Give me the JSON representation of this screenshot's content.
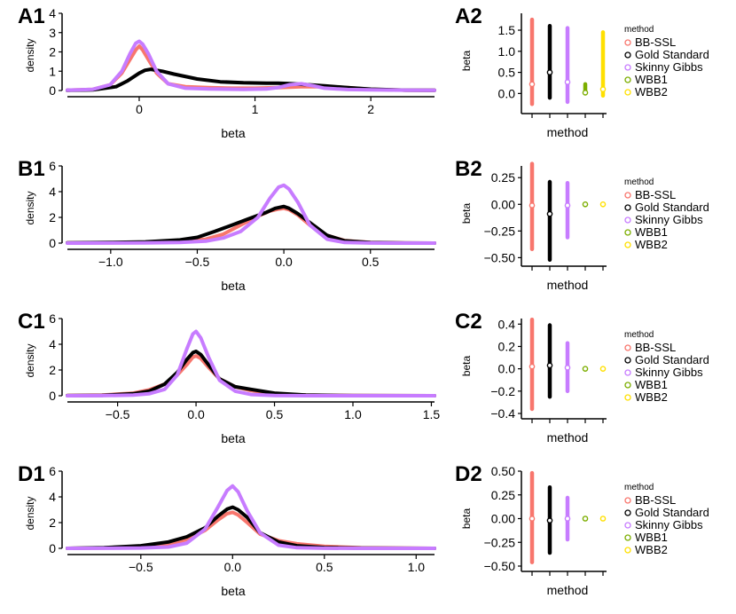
{
  "colors": {
    "BB-SSL": "#F8766D",
    "Gold Standard": "#000000",
    "Skinny Gibbs": "#C77CFF",
    "WBB1": "#7CAE00",
    "WBB2": "#FFE000"
  },
  "chart_data": [
    {
      "id": "A1",
      "panel_label": "A1",
      "type": "line",
      "xlabel": "beta",
      "ylabel": "density",
      "xlim": [
        -0.62,
        2.55
      ],
      "ylim": [
        0,
        4
      ],
      "xticks": [
        0,
        1,
        2
      ],
      "yticks": [
        0,
        1,
        2,
        3,
        4
      ],
      "series": [
        {
          "name": "BB-SSL",
          "x": [
            -0.62,
            -0.4,
            -0.25,
            -0.15,
            -0.08,
            -0.03,
            0,
            0.03,
            0.08,
            0.15,
            0.25,
            0.4,
            0.6,
            0.8,
            1.0,
            1.2,
            1.4,
            1.6,
            1.8,
            2.0,
            2.3,
            2.55
          ],
          "y": [
            0.02,
            0.06,
            0.3,
            0.9,
            1.6,
            2.1,
            2.3,
            2.1,
            1.6,
            0.9,
            0.35,
            0.2,
            0.15,
            0.12,
            0.12,
            0.15,
            0.2,
            0.2,
            0.15,
            0.06,
            0.02,
            0.01
          ]
        },
        {
          "name": "Gold Standard",
          "x": [
            -0.62,
            -0.4,
            -0.2,
            -0.1,
            0,
            0.05,
            0.1,
            0.2,
            0.3,
            0.5,
            0.7,
            0.9,
            1.1,
            1.2,
            1.3,
            1.4,
            1.5,
            1.6,
            1.8,
            2.0,
            2.3,
            2.55
          ],
          "y": [
            0.01,
            0.03,
            0.2,
            0.5,
            0.9,
            1.05,
            1.1,
            1.0,
            0.85,
            0.6,
            0.45,
            0.4,
            0.38,
            0.38,
            0.36,
            0.32,
            0.28,
            0.24,
            0.15,
            0.07,
            0.02,
            0.01
          ]
        },
        {
          "name": "Skinny Gibbs",
          "x": [
            -0.62,
            -0.4,
            -0.25,
            -0.15,
            -0.08,
            -0.03,
            0,
            0.03,
            0.08,
            0.15,
            0.25,
            0.4,
            0.6,
            0.9,
            1.1,
            1.2,
            1.3,
            1.4,
            1.5,
            1.6,
            1.8,
            2.0,
            2.3,
            2.55
          ],
          "y": [
            0.02,
            0.06,
            0.3,
            1.0,
            1.9,
            2.45,
            2.55,
            2.4,
            1.9,
            1.0,
            0.35,
            0.12,
            0.08,
            0.06,
            0.08,
            0.15,
            0.3,
            0.35,
            0.25,
            0.12,
            0.05,
            0.03,
            0.02,
            0.01
          ]
        }
      ]
    },
    {
      "id": "A2",
      "panel_label": "A2",
      "type": "interval",
      "xlabel": "method",
      "ylabel": "beta",
      "ylim": [
        -0.35,
        1.9
      ],
      "yticks": [
        0.0,
        0.5,
        1.0,
        1.5
      ],
      "ytick_labels": [
        "0.0",
        "0.5",
        "1.0",
        "1.5"
      ],
      "methods": [
        "BB-SSL",
        "Gold Standard",
        "Skinny Gibbs",
        "WBB1",
        "WBB2"
      ],
      "intervals": [
        {
          "name": "BB-SSL",
          "low": -0.25,
          "high": 1.75,
          "point": 0.22
        },
        {
          "name": "Gold Standard",
          "low": -0.1,
          "high": 1.6,
          "point": 0.5
        },
        {
          "name": "Skinny Gibbs",
          "low": -0.2,
          "high": 1.55,
          "point": 0.27
        },
        {
          "name": "WBB1",
          "low": 0.0,
          "high": 0.22,
          "point": 0.02
        },
        {
          "name": "WBB2",
          "low": -0.05,
          "high": 1.45,
          "point": 0.1
        }
      ]
    },
    {
      "id": "B1",
      "panel_label": "B1",
      "type": "line",
      "xlabel": "beta",
      "ylabel": "density",
      "xlim": [
        -1.25,
        0.87
      ],
      "ylim": [
        0,
        6
      ],
      "xticks": [
        -1.0,
        -0.5,
        0.0,
        0.5
      ],
      "xtick_labels": [
        "−1.0",
        "−0.5",
        "0.0",
        "0.5"
      ],
      "yticks": [
        0,
        2,
        4,
        6
      ],
      "series": [
        {
          "name": "BB-SSL",
          "x": [
            -1.25,
            -1.0,
            -0.8,
            -0.6,
            -0.45,
            -0.35,
            -0.25,
            -0.15,
            -0.08,
            -0.03,
            0,
            0.03,
            0.08,
            0.15,
            0.25,
            0.35,
            0.5,
            0.7,
            0.87
          ],
          "y": [
            0.02,
            0.03,
            0.05,
            0.12,
            0.3,
            0.7,
            1.4,
            2.1,
            2.5,
            2.65,
            2.7,
            2.6,
            2.2,
            1.4,
            0.6,
            0.2,
            0.05,
            0.01,
            0.0
          ]
        },
        {
          "name": "Gold Standard",
          "x": [
            -1.25,
            -1.0,
            -0.8,
            -0.6,
            -0.5,
            -0.4,
            -0.3,
            -0.2,
            -0.1,
            -0.05,
            0,
            0.03,
            0.08,
            0.15,
            0.25,
            0.35,
            0.5,
            0.7,
            0.87
          ],
          "y": [
            0.02,
            0.05,
            0.1,
            0.25,
            0.45,
            0.9,
            1.4,
            1.9,
            2.4,
            2.7,
            2.85,
            2.7,
            2.3,
            1.6,
            0.6,
            0.18,
            0.04,
            0.01,
            0.0
          ]
        },
        {
          "name": "Skinny Gibbs",
          "x": [
            -1.25,
            -1.0,
            -0.8,
            -0.6,
            -0.45,
            -0.35,
            -0.25,
            -0.15,
            -0.08,
            -0.03,
            0,
            0.03,
            0.08,
            0.15,
            0.25,
            0.35,
            0.5,
            0.7,
            0.87
          ],
          "y": [
            0.0,
            0.01,
            0.02,
            0.05,
            0.15,
            0.4,
            0.9,
            2.0,
            3.5,
            4.35,
            4.5,
            4.2,
            3.2,
            1.4,
            0.3,
            0.05,
            0.01,
            0.0,
            0.0
          ]
        }
      ]
    },
    {
      "id": "B2",
      "panel_label": "B2",
      "type": "interval",
      "xlabel": "method",
      "ylabel": "beta",
      "ylim": [
        -0.53,
        0.36
      ],
      "yticks": [
        -0.5,
        -0.25,
        0.0,
        0.25
      ],
      "ytick_labels": [
        "−0.50",
        "−0.25",
        "0.00",
        "0.25"
      ],
      "methods": [
        "BB-SSL",
        "Gold Standard",
        "Skinny Gibbs",
        "WBB1",
        "WBB2"
      ],
      "intervals": [
        {
          "name": "BB-SSL",
          "low": -0.42,
          "high": 0.38,
          "point": -0.01
        },
        {
          "name": "Gold Standard",
          "low": -0.52,
          "high": 0.21,
          "point": -0.09
        },
        {
          "name": "Skinny Gibbs",
          "low": -0.31,
          "high": 0.2,
          "point": -0.01
        },
        {
          "name": "WBB1",
          "low": 0.0,
          "high": 0.0,
          "point": 0.0
        },
        {
          "name": "WBB2",
          "low": 0.0,
          "high": 0.0,
          "point": 0.0
        }
      ]
    },
    {
      "id": "C1",
      "panel_label": "C1",
      "type": "line",
      "xlabel": "beta",
      "ylabel": "density",
      "xlim": [
        -0.82,
        1.52
      ],
      "ylim": [
        0,
        6
      ],
      "xticks": [
        -0.5,
        0.0,
        0.5,
        1.0,
        1.5
      ],
      "xtick_labels": [
        "−0.5",
        "0.0",
        "0.5",
        "1.0",
        "1.5"
      ],
      "yticks": [
        0,
        2,
        4,
        6
      ],
      "series": [
        {
          "name": "BB-SSL",
          "x": [
            -0.82,
            -0.6,
            -0.4,
            -0.3,
            -0.2,
            -0.12,
            -0.06,
            -0.02,
            0,
            0.03,
            0.08,
            0.15,
            0.25,
            0.35,
            0.5,
            0.7,
            1.0,
            1.52
          ],
          "y": [
            0.02,
            0.05,
            0.2,
            0.45,
            0.9,
            1.6,
            2.4,
            3.0,
            3.1,
            2.9,
            2.2,
            1.3,
            0.7,
            0.4,
            0.15,
            0.05,
            0.02,
            0.0
          ]
        },
        {
          "name": "Gold Standard",
          "x": [
            -0.82,
            -0.6,
            -0.4,
            -0.3,
            -0.2,
            -0.12,
            -0.06,
            -0.02,
            0,
            0.03,
            0.08,
            0.15,
            0.25,
            0.35,
            0.5,
            0.7,
            1.0,
            1.52
          ],
          "y": [
            0.01,
            0.03,
            0.15,
            0.35,
            0.9,
            1.8,
            2.8,
            3.35,
            3.45,
            3.2,
            2.4,
            1.3,
            0.7,
            0.5,
            0.2,
            0.05,
            0.01,
            0.0
          ]
        },
        {
          "name": "Skinny Gibbs",
          "x": [
            -0.82,
            -0.6,
            -0.4,
            -0.3,
            -0.2,
            -0.12,
            -0.06,
            -0.02,
            0,
            0.03,
            0.08,
            0.15,
            0.25,
            0.35,
            0.5,
            0.7,
            1.0,
            1.52
          ],
          "y": [
            0.0,
            0.01,
            0.05,
            0.15,
            0.5,
            1.6,
            3.6,
            4.8,
            5.0,
            4.5,
            3.0,
            1.2,
            0.35,
            0.1,
            0.02,
            0.0,
            0.0,
            0.0
          ]
        }
      ]
    },
    {
      "id": "C2",
      "panel_label": "C2",
      "type": "interval",
      "xlabel": "method",
      "ylabel": "beta",
      "ylim": [
        -0.4,
        0.45
      ],
      "yticks": [
        -0.4,
        -0.2,
        0.0,
        0.2,
        0.4
      ],
      "ytick_labels": [
        "−0.4",
        "−0.2",
        "0.0",
        "0.2",
        "0.4"
      ],
      "methods": [
        "BB-SSL",
        "Gold Standard",
        "Skinny Gibbs",
        "WBB1",
        "WBB2"
      ],
      "intervals": [
        {
          "name": "BB-SSL",
          "low": -0.36,
          "high": 0.44,
          "point": 0.02
        },
        {
          "name": "Gold Standard",
          "low": -0.25,
          "high": 0.39,
          "point": 0.03
        },
        {
          "name": "Skinny Gibbs",
          "low": -0.2,
          "high": 0.23,
          "point": 0.01
        },
        {
          "name": "WBB1",
          "low": 0.0,
          "high": 0.0,
          "point": 0.0
        },
        {
          "name": "WBB2",
          "low": 0.0,
          "high": 0.0,
          "point": 0.0
        }
      ]
    },
    {
      "id": "D1",
      "panel_label": "D1",
      "type": "line",
      "xlabel": "beta",
      "ylabel": "density",
      "xlim": [
        -0.9,
        1.1
      ],
      "ylim": [
        0,
        6
      ],
      "xticks": [
        -0.5,
        0.0,
        0.5,
        1.0
      ],
      "xtick_labels": [
        "−0.5",
        "0.0",
        "0.5",
        "1.0"
      ],
      "yticks": [
        0,
        2,
        4,
        6
      ],
      "series": [
        {
          "name": "BB-SSL",
          "x": [
            -0.9,
            -0.7,
            -0.5,
            -0.35,
            -0.25,
            -0.15,
            -0.08,
            -0.03,
            0,
            0.03,
            0.08,
            0.15,
            0.25,
            0.35,
            0.5,
            0.7,
            1.1
          ],
          "y": [
            0.0,
            0.03,
            0.1,
            0.3,
            0.7,
            1.4,
            2.2,
            2.7,
            2.8,
            2.6,
            2.0,
            1.1,
            0.6,
            0.35,
            0.15,
            0.04,
            0.0
          ]
        },
        {
          "name": "Gold Standard",
          "x": [
            -0.9,
            -0.7,
            -0.5,
            -0.35,
            -0.25,
            -0.15,
            -0.08,
            -0.03,
            0,
            0.03,
            0.08,
            0.15,
            0.25,
            0.35,
            0.5,
            0.7,
            1.1
          ],
          "y": [
            0.0,
            0.05,
            0.2,
            0.5,
            0.9,
            1.6,
            2.5,
            3.05,
            3.2,
            3.0,
            2.4,
            1.2,
            0.5,
            0.2,
            0.06,
            0.02,
            0.0
          ]
        },
        {
          "name": "Skinny Gibbs",
          "x": [
            -0.9,
            -0.7,
            -0.5,
            -0.35,
            -0.25,
            -0.15,
            -0.08,
            -0.03,
            0,
            0.03,
            0.08,
            0.15,
            0.25,
            0.35,
            0.5,
            0.7,
            1.1
          ],
          "y": [
            0.0,
            0.01,
            0.03,
            0.1,
            0.4,
            1.5,
            3.2,
            4.5,
            4.85,
            4.4,
            2.9,
            1.2,
            0.25,
            0.05,
            0.01,
            0.0,
            0.0
          ]
        }
      ]
    },
    {
      "id": "D2",
      "panel_label": "D2",
      "type": "interval",
      "xlabel": "method",
      "ylabel": "beta",
      "ylim": [
        -0.5,
        0.5
      ],
      "yticks": [
        -0.5,
        -0.25,
        0.0,
        0.25,
        0.5
      ],
      "ytick_labels": [
        "−0.50",
        "−0.25",
        "0.00",
        "0.25",
        "0.50"
      ],
      "methods": [
        "BB-SSL",
        "Gold Standard",
        "Skinny Gibbs",
        "WBB1",
        "WBB2"
      ],
      "intervals": [
        {
          "name": "BB-SSL",
          "low": -0.46,
          "high": 0.48,
          "point": 0.0
        },
        {
          "name": "Gold Standard",
          "low": -0.36,
          "high": 0.33,
          "point": -0.02
        },
        {
          "name": "Skinny Gibbs",
          "low": -0.22,
          "high": 0.22,
          "point": 0.0
        },
        {
          "name": "WBB1",
          "low": 0.0,
          "high": 0.0,
          "point": 0.0
        },
        {
          "name": "WBB2",
          "low": 0.0,
          "high": 0.0,
          "point": 0.0
        }
      ]
    }
  ],
  "legend": {
    "title": "method",
    "entries": [
      "BB-SSL",
      "Gold Standard",
      "Skinny Gibbs",
      "WBB1",
      "WBB2"
    ]
  }
}
